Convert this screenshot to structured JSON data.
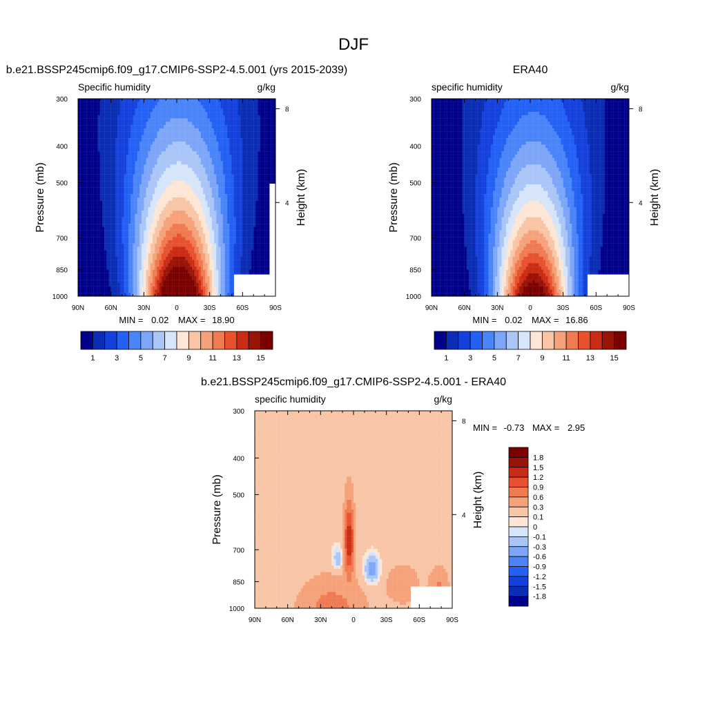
{
  "figure": {
    "title": "DJF"
  },
  "chart_data": [
    {
      "type": "heatmap",
      "title": "b.e21.BSSP245cmip6.f09_g17.CMIP6-SSP2-4.5.001 (yrs 2015-2039)",
      "subtitle_left": "Specific humidity",
      "subtitle_right": "g/kg",
      "ylabel": "Pressure (mb)",
      "ylabel_right": "Height (km)",
      "x_ticks": [
        "90N",
        "60N",
        "30N",
        "0",
        "30S",
        "60S",
        "90S"
      ],
      "x_range": [
        -90,
        90
      ],
      "y_ticks": [
        300,
        400,
        500,
        700,
        850,
        1000
      ],
      "y_range": [
        300,
        1000
      ],
      "y_log": true,
      "right_ticks": [
        8,
        4
      ],
      "stats": {
        "min_label": "MIN =",
        "min": "0.02",
        "max_label": "MAX =",
        "max": "18.90"
      },
      "field": {
        "peak": 18.9,
        "center_lat": 2,
        "scale_height_mb": 820,
        "width_deg": 36,
        "floor": 0.02
      },
      "levels": [
        1,
        2,
        3,
        4,
        5,
        6,
        7,
        8,
        9,
        10,
        11,
        12,
        13,
        14,
        15
      ],
      "colorbar_labels": [
        "1",
        "3",
        "5",
        "7",
        "9",
        "11",
        "13",
        "15"
      ],
      "colors": [
        "#00008b",
        "#0a2db4",
        "#1440dc",
        "#2361f5",
        "#4a84f9",
        "#7ea6f8",
        "#aac6f7",
        "#d7e5fa",
        "#fde6d5",
        "#f8c5a6",
        "#f5a27a",
        "#f07b52",
        "#e7512e",
        "#c92b15",
        "#9a1307",
        "#7b0000"
      ]
    },
    {
      "type": "heatmap",
      "title": "ERA40",
      "subtitle_left": "specific humidity",
      "subtitle_right": "g/kg",
      "ylabel": "Pressure (mb)",
      "ylabel_right": "Height (km)",
      "x_ticks": [
        "90N",
        "60N",
        "30N",
        "0",
        "30S",
        "60S",
        "90S"
      ],
      "x_range": [
        -90,
        90
      ],
      "y_ticks": [
        300,
        400,
        500,
        700,
        850,
        1000
      ],
      "y_range": [
        300,
        1000
      ],
      "y_log": true,
      "right_ticks": [
        8,
        4
      ],
      "stats": {
        "min_label": "MIN =",
        "min": "0.02",
        "max_label": "MAX =",
        "max": "16.86"
      },
      "field": {
        "peak": 16.86,
        "center_lat": 3,
        "scale_height_mb": 780,
        "width_deg": 34,
        "floor": 0.02
      },
      "levels": [
        1,
        2,
        3,
        4,
        5,
        6,
        7,
        8,
        9,
        10,
        11,
        12,
        13,
        14,
        15
      ],
      "colorbar_labels": [
        "1",
        "3",
        "5",
        "7",
        "9",
        "11",
        "13",
        "15"
      ],
      "colors": [
        "#00008b",
        "#0a2db4",
        "#1440dc",
        "#2361f5",
        "#4a84f9",
        "#7ea6f8",
        "#aac6f7",
        "#d7e5fa",
        "#fde6d5",
        "#f8c5a6",
        "#f5a27a",
        "#f07b52",
        "#e7512e",
        "#c92b15",
        "#9a1307",
        "#7b0000"
      ]
    },
    {
      "type": "heatmap",
      "title": "b.e21.BSSP245cmip6.f09_g17.CMIP6-SSP2-4.5.001 - ERA40",
      "subtitle_left": "specific humidity",
      "subtitle_right": "g/kg",
      "ylabel": "Pressure (mb)",
      "ylabel_right": "Height (km)",
      "x_ticks": [
        "90N",
        "60N",
        "30N",
        "0",
        "30S",
        "60S",
        "90S"
      ],
      "x_range": [
        -90,
        90
      ],
      "y_ticks": [
        300,
        400,
        500,
        700,
        850,
        1000
      ],
      "y_range": [
        300,
        1000
      ],
      "y_log": true,
      "right_ticks": [
        8,
        4
      ],
      "stats": {
        "min_label": "MIN =",
        "min": "-0.73",
        "max_label": "MAX =",
        "max": "2.95"
      },
      "levels": [
        -1.8,
        -1.5,
        -1.2,
        -0.9,
        -0.6,
        -0.3,
        -0.1,
        0,
        0.1,
        0.3,
        0.6,
        0.9,
        1.2,
        1.5,
        1.8
      ],
      "colorbar_labels": [
        "1.8",
        "1.5",
        "1.2",
        "0.9",
        "0.6",
        "0.3",
        "0.1",
        "0",
        "-0.1",
        "-0.3",
        "-0.6",
        "-0.9",
        "-1.2",
        "-1.5",
        "-1.8"
      ],
      "colors": [
        "#00008b",
        "#0a2db4",
        "#1440dc",
        "#2361f5",
        "#4a84f9",
        "#7ea6f8",
        "#aac6f7",
        "#d7e5fa",
        "#fde6d5",
        "#f8c5a6",
        "#f5a27a",
        "#f07b52",
        "#e7512e",
        "#c92b15",
        "#9a1307",
        "#7b0000"
      ]
    }
  ]
}
